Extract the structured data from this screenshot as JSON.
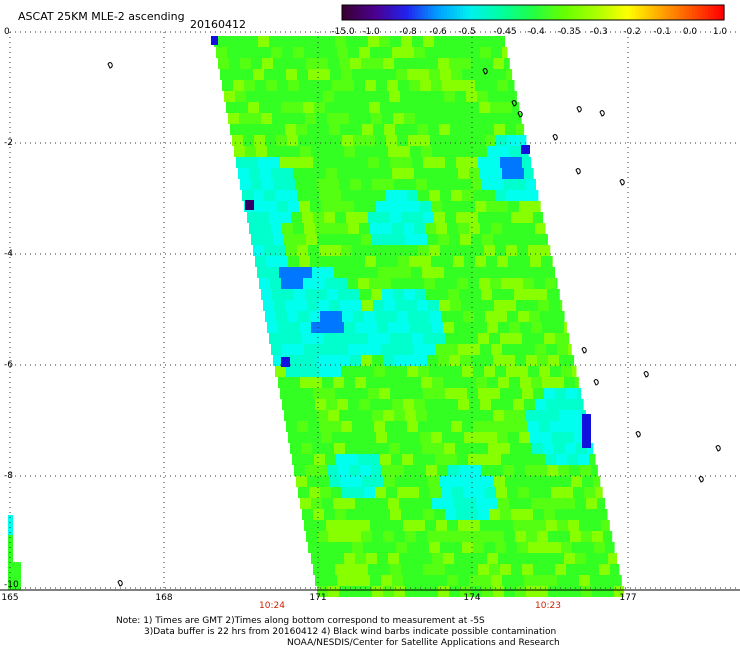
{
  "title": "ASCAT 25KM MLE-2 ascending",
  "date": "20160412",
  "colorbar": {
    "labels": [
      "-15.0",
      "-1.0",
      "-0.8",
      "-0.6",
      "-0.5",
      "-0.45",
      "-0.4",
      "-0.35",
      "-0.3",
      "-0.2",
      "-0.1",
      "0.0",
      "1.0"
    ],
    "colors": [
      "#3a0033",
      "#4b0090",
      "#2222ee",
      "#00a0ff",
      "#00f0f0",
      "#00ffa0",
      "#22ff44",
      "#66ff00",
      "#aaff00",
      "#ffff00",
      "#ffaa00",
      "#ff5500",
      "#ff0000"
    ]
  },
  "axes": {
    "y_labels": [
      "0",
      "-2",
      "-4",
      "-6",
      "-8",
      "-10"
    ],
    "x_labels": [
      "165",
      "168",
      "171",
      "174",
      "177"
    ]
  },
  "times": [
    "10:24",
    "10:23"
  ],
  "notes": [
    "Note: 1) Times are GMT 2)Times along bottom correspond to measurement at -5S",
    "3)Data buffer is 22 hrs from 20160412 4) Black wind barbs indicate possible contamination",
    "NOAA/NESDIS/Center for Satellite Applications and Research"
  ],
  "swath_colors": {
    "main": "#33ff22",
    "light": "#88ff00",
    "cyan": "#00ffcc",
    "aqua": "#00ffee",
    "blue": "#0077ff",
    "deep": "#1111dd",
    "purple": "#330066"
  }
}
